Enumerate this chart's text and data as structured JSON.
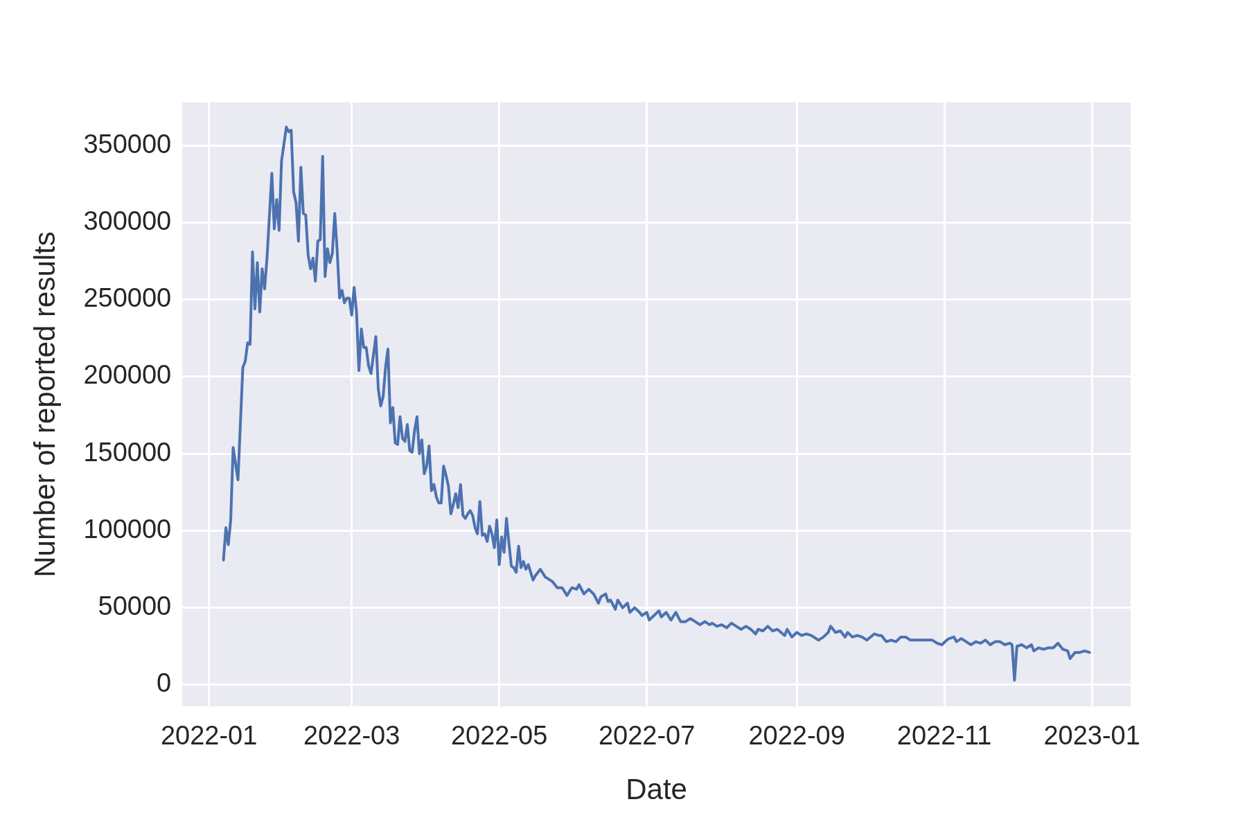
{
  "chart_data": {
    "type": "line",
    "xlabel": "Date",
    "ylabel": "Number of reported results",
    "x": [
      "2022-01-07",
      "2022-01-08",
      "2022-01-09",
      "2022-01-10",
      "2022-01-11",
      "2022-01-13",
      "2022-01-15",
      "2022-01-16",
      "2022-01-17",
      "2022-01-18",
      "2022-01-19",
      "2022-01-20",
      "2022-01-21",
      "2022-01-22",
      "2022-01-23",
      "2022-01-24",
      "2022-01-25",
      "2022-01-27",
      "2022-01-28",
      "2022-01-29",
      "2022-01-30",
      "2022-01-31",
      "2022-02-02",
      "2022-02-03",
      "2022-02-04",
      "2022-02-05",
      "2022-02-06",
      "2022-02-07",
      "2022-02-08",
      "2022-02-09",
      "2022-02-10",
      "2022-02-11",
      "2022-02-12",
      "2022-02-13",
      "2022-02-14",
      "2022-02-15",
      "2022-02-16",
      "2022-02-17",
      "2022-02-18",
      "2022-02-19",
      "2022-02-20",
      "2022-02-21",
      "2022-02-22",
      "2022-02-23",
      "2022-02-24",
      "2022-02-25",
      "2022-02-26",
      "2022-02-27",
      "2022-02-28",
      "2022-03-01",
      "2022-03-02",
      "2022-03-03",
      "2022-03-04",
      "2022-03-05",
      "2022-03-06",
      "2022-03-07",
      "2022-03-08",
      "2022-03-09",
      "2022-03-10",
      "2022-03-11",
      "2022-03-12",
      "2022-03-13",
      "2022-03-14",
      "2022-03-15",
      "2022-03-16",
      "2022-03-17",
      "2022-03-18",
      "2022-03-19",
      "2022-03-20",
      "2022-03-21",
      "2022-03-22",
      "2022-03-23",
      "2022-03-24",
      "2022-03-25",
      "2022-03-26",
      "2022-03-27",
      "2022-03-28",
      "2022-03-29",
      "2022-03-30",
      "2022-03-31",
      "2022-04-01",
      "2022-04-02",
      "2022-04-03",
      "2022-04-04",
      "2022-04-05",
      "2022-04-06",
      "2022-04-07",
      "2022-04-08",
      "2022-04-09",
      "2022-04-10",
      "2022-04-11",
      "2022-04-12",
      "2022-04-13",
      "2022-04-14",
      "2022-04-15",
      "2022-04-16",
      "2022-04-17",
      "2022-04-18",
      "2022-04-19",
      "2022-04-20",
      "2022-04-21",
      "2022-04-22",
      "2022-04-23",
      "2022-04-24",
      "2022-04-25",
      "2022-04-26",
      "2022-04-27",
      "2022-04-28",
      "2022-04-29",
      "2022-04-30",
      "2022-05-01",
      "2022-05-02",
      "2022-05-03",
      "2022-05-04",
      "2022-05-05",
      "2022-05-06",
      "2022-05-07",
      "2022-05-08",
      "2022-05-09",
      "2022-05-10",
      "2022-05-11",
      "2022-05-12",
      "2022-05-13",
      "2022-05-15",
      "2022-05-16",
      "2022-05-18",
      "2022-05-20",
      "2022-05-21",
      "2022-05-23",
      "2022-05-25",
      "2022-05-27",
      "2022-05-29",
      "2022-05-31",
      "2022-06-02",
      "2022-06-03",
      "2022-06-05",
      "2022-06-07",
      "2022-06-09",
      "2022-06-11",
      "2022-06-12",
      "2022-06-14",
      "2022-06-15",
      "2022-06-16",
      "2022-06-18",
      "2022-06-19",
      "2022-06-21",
      "2022-06-23",
      "2022-06-24",
      "2022-06-26",
      "2022-06-28",
      "2022-06-29",
      "2022-07-01",
      "2022-07-02",
      "2022-07-04",
      "2022-07-06",
      "2022-07-07",
      "2022-07-09",
      "2022-07-11",
      "2022-07-13",
      "2022-07-15",
      "2022-07-17",
      "2022-07-19",
      "2022-07-21",
      "2022-07-23",
      "2022-07-25",
      "2022-07-27",
      "2022-07-28",
      "2022-07-30",
      "2022-08-01",
      "2022-08-03",
      "2022-08-05",
      "2022-08-07",
      "2022-08-09",
      "2022-08-11",
      "2022-08-13",
      "2022-08-15",
      "2022-08-16",
      "2022-08-18",
      "2022-08-20",
      "2022-08-22",
      "2022-08-24",
      "2022-08-27",
      "2022-08-28",
      "2022-08-30",
      "2022-09-01",
      "2022-09-03",
      "2022-09-05",
      "2022-09-07",
      "2022-09-10",
      "2022-09-12",
      "2022-09-14",
      "2022-09-15",
      "2022-09-17",
      "2022-09-19",
      "2022-09-21",
      "2022-09-22",
      "2022-09-24",
      "2022-09-26",
      "2022-09-28",
      "2022-09-30",
      "2022-10-03",
      "2022-10-05",
      "2022-10-06",
      "2022-10-08",
      "2022-10-10",
      "2022-10-12",
      "2022-10-14",
      "2022-10-16",
      "2022-10-18",
      "2022-10-20",
      "2022-10-22",
      "2022-10-25",
      "2022-10-27",
      "2022-10-29",
      "2022-10-31",
      "2022-11-02",
      "2022-11-03",
      "2022-11-05",
      "2022-11-06",
      "2022-11-08",
      "2022-11-10",
      "2022-11-12",
      "2022-11-14",
      "2022-11-16",
      "2022-11-18",
      "2022-11-20",
      "2022-11-22",
      "2022-11-24",
      "2022-11-26",
      "2022-11-28",
      "2022-11-29",
      "2022-11-30",
      "2022-12-01",
      "2022-12-03",
      "2022-12-05",
      "2022-12-07",
      "2022-12-08",
      "2022-12-10",
      "2022-12-12",
      "2022-12-14",
      "2022-12-16",
      "2022-12-18",
      "2022-12-20",
      "2022-12-22",
      "2022-12-23",
      "2022-12-25",
      "2022-12-27",
      "2022-12-29",
      "2022-12-31"
    ],
    "series": [
      {
        "color": "#4c72b0",
        "values": [
          81000,
          102000,
          91000,
          107000,
          154000,
          133000,
          206000,
          210000,
          222000,
          221000,
          281000,
          244000,
          274000,
          242000,
          270000,
          257000,
          277000,
          332000,
          296000,
          315000,
          295000,
          340000,
          362000,
          359000,
          360000,
          320000,
          313000,
          288000,
          336000,
          306000,
          305000,
          279000,
          270000,
          277000,
          262000,
          288000,
          289000,
          343000,
          265000,
          283000,
          274000,
          280000,
          306000,
          282000,
          251000,
          256000,
          248000,
          251000,
          251000,
          240000,
          258000,
          242000,
          204000,
          231000,
          219000,
          219000,
          207000,
          202000,
          214000,
          226000,
          192000,
          181000,
          187000,
          206000,
          218000,
          170000,
          180000,
          157000,
          156000,
          174000,
          160000,
          158000,
          169000,
          152000,
          151000,
          165000,
          174000,
          150000,
          159000,
          137000,
          142000,
          155000,
          126000,
          130000,
          122000,
          118000,
          118000,
          142000,
          136000,
          129000,
          111000,
          117000,
          124000,
          115000,
          130000,
          110000,
          108000,
          111000,
          113000,
          110000,
          102000,
          98000,
          119000,
          97000,
          98000,
          93000,
          103000,
          98000,
          89000,
          107000,
          78000,
          96000,
          86000,
          108000,
          92000,
          77000,
          76000,
          73000,
          90000,
          76000,
          80000,
          75000,
          78000,
          68000,
          71000,
          75000,
          70000,
          69000,
          67000,
          63000,
          63000,
          58000,
          63000,
          62000,
          65000,
          59000,
          62000,
          59000,
          53000,
          57000,
          59000,
          54000,
          55000,
          49000,
          55000,
          50000,
          53000,
          47000,
          50000,
          47000,
          45000,
          47000,
          42000,
          45000,
          48000,
          44000,
          47000,
          42000,
          47000,
          41000,
          41000,
          43000,
          41000,
          39000,
          41000,
          39000,
          40000,
          38000,
          39000,
          37000,
          40000,
          38000,
          36000,
          38000,
          36000,
          33000,
          36000,
          35000,
          38000,
          35000,
          36000,
          32000,
          36000,
          31000,
          34000,
          32000,
          33000,
          32000,
          29000,
          31000,
          34000,
          38000,
          34000,
          35000,
          31000,
          34000,
          31000,
          32000,
          31000,
          29000,
          33000,
          32000,
          32000,
          28000,
          29000,
          28000,
          31000,
          31000,
          29000,
          29000,
          29000,
          29000,
          29000,
          27000,
          26000,
          29000,
          30000,
          31000,
          28000,
          30000,
          28000,
          26000,
          28000,
          27000,
          29000,
          26000,
          28000,
          28000,
          26000,
          27000,
          26000,
          3000,
          25000,
          26000,
          24000,
          26000,
          22000,
          24000,
          23000,
          24000,
          24000,
          27000,
          23000,
          22000,
          17000,
          21000,
          21000,
          22000,
          21000
        ]
      }
    ],
    "xlim": [
      "2021-12-21",
      "2023-01-17"
    ],
    "xticks": [
      "2022-01",
      "2022-03",
      "2022-05",
      "2022-07",
      "2022-09",
      "2022-11",
      "2023-01"
    ],
    "ylim": [
      -14000,
      378000
    ],
    "yticks": [
      0,
      50000,
      100000,
      150000,
      200000,
      250000,
      300000,
      350000
    ],
    "grid": true,
    "legend": false
  }
}
